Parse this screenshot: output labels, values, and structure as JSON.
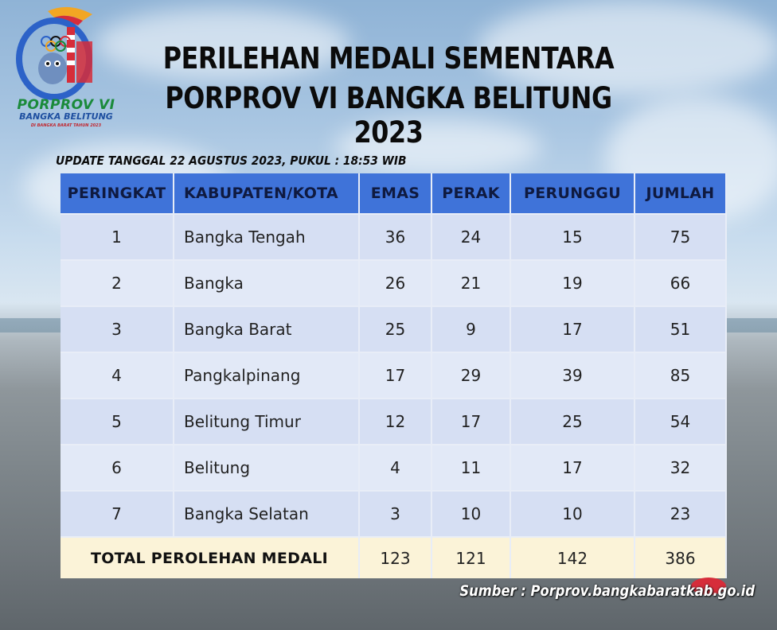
{
  "logo": {
    "line1": "PORPROV VI",
    "line2": "BANGKA BELITUNG",
    "line3": "DI BANGKA BARAT TAHUN 2023"
  },
  "header": {
    "title_line1": "PERILEHAN MEDALI SEMENTARA",
    "title_line2": "PORPROV VI BANGKA BELITUNG 2023",
    "update": "UPDATE TANGGAL 22 AGUSTUS 2023, PUKUL : 18:53 WIB"
  },
  "table": {
    "columns": [
      "PERINGKAT",
      "KABUPATEN/KOTA",
      "EMAS",
      "PERAK",
      "PERUNGGU",
      "JUMLAH"
    ],
    "rows": [
      {
        "rank": "1",
        "name": "Bangka Tengah",
        "emas": "36",
        "perak": "24",
        "perunggu": "15",
        "jumlah": "75"
      },
      {
        "rank": "2",
        "name": "Bangka",
        "emas": "26",
        "perak": "21",
        "perunggu": "19",
        "jumlah": "66"
      },
      {
        "rank": "3",
        "name": "Bangka Barat",
        "emas": "25",
        "perak": "9",
        "perunggu": "17",
        "jumlah": "51"
      },
      {
        "rank": "4",
        "name": "Pangkalpinang",
        "emas": "17",
        "perak": "29",
        "perunggu": "39",
        "jumlah": "85"
      },
      {
        "rank": "5",
        "name": "Belitung Timur",
        "emas": "12",
        "perak": "17",
        "perunggu": "25",
        "jumlah": "54"
      },
      {
        "rank": "6",
        "name": "Belitung",
        "emas": "4",
        "perak": "11",
        "perunggu": "17",
        "jumlah": "32"
      },
      {
        "rank": "7",
        "name": "Bangka Selatan",
        "emas": "3",
        "perak": "10",
        "perunggu": "10",
        "jumlah": "23"
      }
    ],
    "total": {
      "label": "TOTAL PEROLEHAN MEDALI",
      "emas": "123",
      "perak": "121",
      "perunggu": "142",
      "jumlah": "386"
    }
  },
  "footer": {
    "source": "Sumber : Porprov.bangkabaratkab.go.id"
  },
  "colors": {
    "header_bg": "#3f73d9",
    "row_bg": "#d6dff3",
    "total_bg": "#fbf3d8"
  }
}
